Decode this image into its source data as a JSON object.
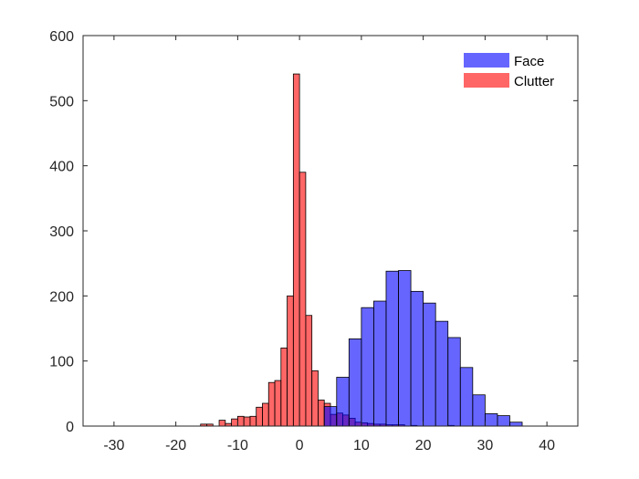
{
  "chart_data": {
    "type": "bar",
    "title": "",
    "xlabel": "",
    "ylabel": "",
    "xlim": [
      -35,
      45
    ],
    "ylim": [
      0,
      600
    ],
    "xticks": [
      -30,
      -20,
      -10,
      0,
      10,
      20,
      30,
      40
    ],
    "yticks": [
      0,
      100,
      200,
      300,
      400,
      500,
      600
    ],
    "grid": false,
    "legend_position": "top-right",
    "series": [
      {
        "name": "Face",
        "color": "#0000ff",
        "alpha": 0.6,
        "bins": [
          {
            "x0": 4,
            "x1": 6,
            "value": 30
          },
          {
            "x0": 6,
            "x1": 8,
            "value": 75
          },
          {
            "x0": 8,
            "x1": 10,
            "value": 134
          },
          {
            "x0": 10,
            "x1": 12,
            "value": 182
          },
          {
            "x0": 12,
            "x1": 14,
            "value": 192
          },
          {
            "x0": 14,
            "x1": 16,
            "value": 238
          },
          {
            "x0": 16,
            "x1": 18,
            "value": 239
          },
          {
            "x0": 18,
            "x1": 20,
            "value": 207
          },
          {
            "x0": 20,
            "x1": 22,
            "value": 189
          },
          {
            "x0": 22,
            "x1": 24,
            "value": 161
          },
          {
            "x0": 24,
            "x1": 26,
            "value": 136
          },
          {
            "x0": 26,
            "x1": 28,
            "value": 90
          },
          {
            "x0": 28,
            "x1": 30,
            "value": 48
          },
          {
            "x0": 30,
            "x1": 32,
            "value": 19
          },
          {
            "x0": 32,
            "x1": 34,
            "value": 16
          },
          {
            "x0": 34,
            "x1": 36,
            "value": 6
          }
        ]
      },
      {
        "name": "Clutter",
        "color": "#ff0000",
        "alpha": 0.6,
        "bins": [
          {
            "x0": -16,
            "x1": -15,
            "value": 3
          },
          {
            "x0": -15,
            "x1": -14,
            "value": 3
          },
          {
            "x0": -13,
            "x1": -12,
            "value": 9
          },
          {
            "x0": -12,
            "x1": -11,
            "value": 4
          },
          {
            "x0": -11,
            "x1": -10,
            "value": 11
          },
          {
            "x0": -10,
            "x1": -9,
            "value": 15
          },
          {
            "x0": -9,
            "x1": -8,
            "value": 14
          },
          {
            "x0": -8,
            "x1": -7,
            "value": 15
          },
          {
            "x0": -7,
            "x1": -6,
            "value": 29
          },
          {
            "x0": -6,
            "x1": -5,
            "value": 35
          },
          {
            "x0": -5,
            "x1": -4,
            "value": 67
          },
          {
            "x0": -4,
            "x1": -3,
            "value": 70
          },
          {
            "x0": -3,
            "x1": -2,
            "value": 120
          },
          {
            "x0": -2,
            "x1": -1,
            "value": 200
          },
          {
            "x0": -1,
            "x1": 0,
            "value": 541
          },
          {
            "x0": 0,
            "x1": 1,
            "value": 390
          },
          {
            "x0": 1,
            "x1": 2,
            "value": 170
          },
          {
            "x0": 2,
            "x1": 3,
            "value": 85
          },
          {
            "x0": 3,
            "x1": 4,
            "value": 40
          },
          {
            "x0": 4,
            "x1": 5,
            "value": 35
          },
          {
            "x0": 5,
            "x1": 6,
            "value": 18
          },
          {
            "x0": 6,
            "x1": 7,
            "value": 20
          },
          {
            "x0": 7,
            "x1": 8,
            "value": 17
          },
          {
            "x0": 8,
            "x1": 9,
            "value": 12
          },
          {
            "x0": 9,
            "x1": 10,
            "value": 6
          },
          {
            "x0": 10,
            "x1": 11,
            "value": 5
          },
          {
            "x0": 11,
            "x1": 12,
            "value": 4
          },
          {
            "x0": 12,
            "x1": 13,
            "value": 3
          },
          {
            "x0": 13,
            "x1": 14,
            "value": 3
          },
          {
            "x0": 14,
            "x1": 15,
            "value": 2
          },
          {
            "x0": 15,
            "x1": 16,
            "value": 2
          },
          {
            "x0": 16,
            "x1": 17,
            "value": 2
          },
          {
            "x0": 18,
            "x1": 19,
            "value": 1
          },
          {
            "x0": 24,
            "x1": 25,
            "value": 1
          }
        ]
      }
    ]
  }
}
